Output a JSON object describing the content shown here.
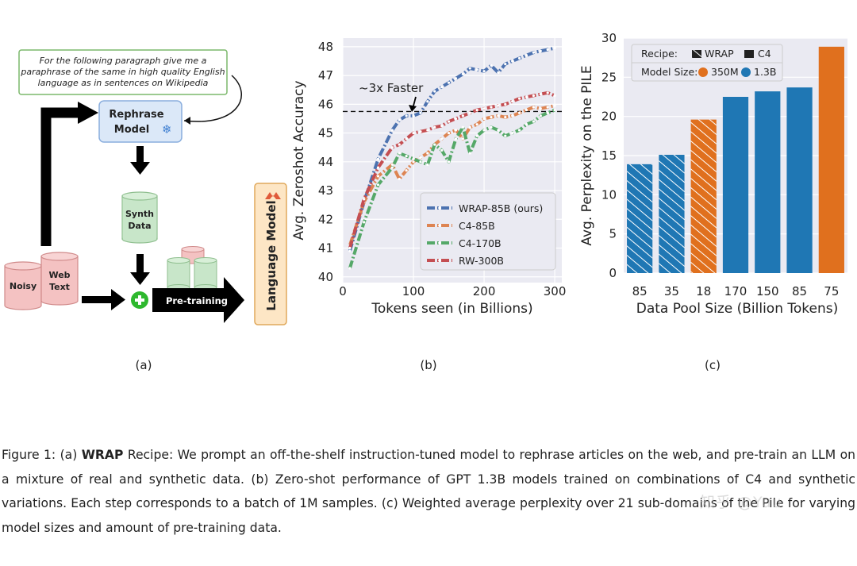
{
  "colors": {
    "blue": "#4c72b0",
    "orange": "#dd8452",
    "green": "#55a868",
    "red": "#c44e52",
    "bar_blue": "#1f77b4",
    "bar_orange": "#e0701e",
    "pink": "#f4c2c2",
    "mint": "#c8e6c9"
  },
  "panel_a": {
    "prompt": [
      "For the following paragraph give me a",
      "paraphrase of the same in high quality English",
      "language as in sentences on Wikipedia"
    ],
    "rephrase_model": [
      "Rephrase",
      "Model"
    ],
    "synth_data": [
      "Synth",
      "Data"
    ],
    "noisy": "Noisy",
    "web_text": [
      "Web",
      "Text"
    ],
    "pretraining": "Pre-training",
    "language_model": "Language Model",
    "label": "(a)"
  },
  "chart_data": [
    {
      "type": "line",
      "title": "",
      "xlabel": "Tokens seen (in Billions)",
      "ylabel": "Avg. Zeroshot Accuracy",
      "xlim": [
        0,
        310
      ],
      "ylim": [
        39.8,
        48.3
      ],
      "xticks": [
        0,
        100,
        200,
        300
      ],
      "yticks": [
        40,
        41,
        42,
        43,
        44,
        45,
        46,
        47,
        48
      ],
      "reference_line": 45.75,
      "annotation": "~3x Faster",
      "label": "(b)",
      "series": [
        {
          "name": "WRAP-85B (ours)",
          "color_key": "blue",
          "x": [
            10,
            30,
            50,
            70,
            80,
            90,
            100,
            110,
            120,
            130,
            140,
            150,
            160,
            170,
            180,
            190,
            200,
            210,
            220,
            230,
            240,
            250,
            260,
            270,
            280,
            290,
            300
          ],
          "y": [
            40.9,
            42.6,
            44.1,
            45.1,
            45.45,
            45.6,
            45.6,
            45.7,
            46.1,
            46.45,
            46.6,
            46.75,
            46.9,
            47.05,
            47.25,
            47.2,
            47.15,
            47.35,
            47.1,
            47.4,
            47.5,
            47.6,
            47.7,
            47.8,
            47.85,
            47.9,
            47.95
          ]
        },
        {
          "name": "C4-85B",
          "color_key": "orange",
          "x": [
            10,
            30,
            50,
            70,
            80,
            90,
            100,
            110,
            120,
            130,
            140,
            150,
            160,
            170,
            180,
            190,
            200,
            210,
            220,
            230,
            240,
            250,
            260,
            270,
            280,
            290,
            300
          ],
          "y": [
            41.1,
            42.6,
            43.5,
            43.9,
            43.4,
            43.7,
            44.0,
            44.15,
            44.3,
            44.6,
            44.8,
            45.0,
            45.1,
            44.8,
            45.2,
            45.3,
            45.5,
            45.55,
            45.6,
            45.55,
            45.6,
            45.7,
            45.8,
            45.9,
            45.85,
            45.9,
            45.95
          ]
        },
        {
          "name": "C4-170B",
          "color_key": "green",
          "x": [
            10,
            30,
            50,
            70,
            80,
            90,
            100,
            110,
            120,
            130,
            140,
            150,
            160,
            170,
            180,
            190,
            200,
            210,
            220,
            230,
            240,
            250,
            260,
            270,
            280,
            290,
            300
          ],
          "y": [
            40.3,
            41.9,
            43.2,
            43.8,
            44.3,
            44.2,
            44.1,
            44.0,
            43.9,
            44.6,
            44.4,
            44.0,
            44.8,
            45.2,
            44.3,
            44.9,
            45.1,
            45.2,
            45.1,
            44.9,
            45.0,
            45.1,
            45.3,
            45.4,
            45.6,
            45.7,
            45.8
          ]
        },
        {
          "name": "RW-300B",
          "color_key": "red",
          "x": [
            10,
            30,
            50,
            70,
            80,
            90,
            100,
            110,
            120,
            130,
            140,
            150,
            160,
            170,
            180,
            190,
            200,
            210,
            220,
            230,
            240,
            250,
            260,
            270,
            280,
            290,
            300
          ],
          "y": [
            41.0,
            42.7,
            43.8,
            44.5,
            44.6,
            44.8,
            45.0,
            45.05,
            45.1,
            45.2,
            45.25,
            45.4,
            45.5,
            45.6,
            45.7,
            45.8,
            45.85,
            45.9,
            45.95,
            46.0,
            46.1,
            46.2,
            46.25,
            46.3,
            46.35,
            46.4,
            46.3
          ]
        }
      ]
    },
    {
      "type": "bar",
      "title": "",
      "xlabel": "Data Pool Size (Billion Tokens)",
      "ylabel": "Avg. Perplexity on the PILE",
      "ylim": [
        0,
        30
      ],
      "yticks": [
        0,
        5,
        10,
        15,
        20,
        25,
        30
      ],
      "categories": [
        "85",
        "35",
        "18",
        "170",
        "150",
        "85",
        "75"
      ],
      "values": [
        13.9,
        15.1,
        19.6,
        22.5,
        23.2,
        23.7,
        28.9
      ],
      "recipes": [
        "WRAP",
        "WRAP",
        "WRAP",
        "C4",
        "C4",
        "C4",
        "C4"
      ],
      "model_sizes": [
        "1.3B",
        "1.3B",
        "350M",
        "1.3B",
        "1.3B",
        "1.3B",
        "350M"
      ],
      "legend": {
        "recipe_title": "Recipe:",
        "recipe_items": [
          "WRAP",
          "C4"
        ],
        "size_title": "Model Size:",
        "size_items": [
          "350M",
          "1.3B"
        ]
      },
      "label": "(c)"
    }
  ],
  "caption": {
    "prefix": "Figure 1: (a) ",
    "bold": "WRAP",
    "text": " Recipe: We prompt an off-the-shelf instruction-tuned model to rephrase articles on the web, and pre-train an LLM on a mixture of real and synthetic data.  (b) Zero-shot performance of GPT 1.3B models trained on combinations of C4 and synthetic variations. Each step corresponds to a batch of 1M samples. (c) Weighted average perplexity over 21 sub-domains of the Pile for varying model sizes and amount of pre-training data."
  },
  "watermark": "知乎 @Yuu"
}
